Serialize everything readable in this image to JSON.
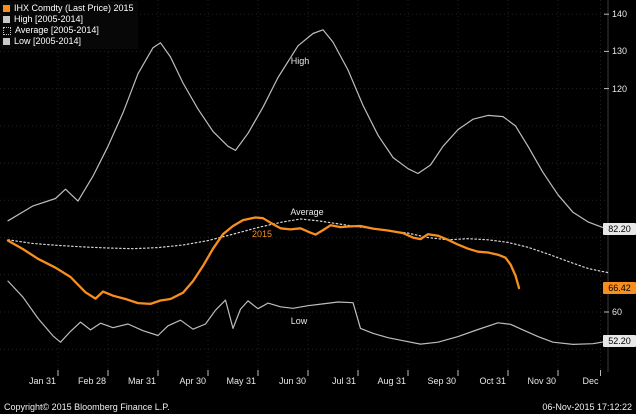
{
  "legend": {
    "items": [
      {
        "label": "IHX Comdty (Last Price) 2015",
        "marker": "solid",
        "color": "#f78e1e"
      },
      {
        "label": "High [2005-2014]",
        "marker": "solid",
        "color": "#c8c8c8"
      },
      {
        "label": "Average [2005-2014]",
        "marker": "dotted",
        "color": "#c8c8c8"
      },
      {
        "label": "Low [2005-2014]",
        "marker": "solid",
        "color": "#c8c8c8"
      }
    ]
  },
  "footer": {
    "copyright": "Copyright© 2015 Bloomberg Finance L.P.",
    "timestamp": "06-Nov-2015 17:12:22"
  },
  "colors": {
    "background": "#000000",
    "accent_orange": "#f78e1e",
    "line_gray": "#bdbdbd",
    "badge_white": "#e8e8e8"
  },
  "chart_data": {
    "type": "line",
    "title": "IHX Comdty (Last Price) 2015 vs High/Average/Low [2005-2014]",
    "xlim": [
      0,
      12
    ],
    "ylim": [
      43.9,
      143.8
    ],
    "grid": true,
    "legend_position": "top-left",
    "x_ticks": [
      {
        "label": "Jan 31",
        "m": 1
      },
      {
        "label": "Feb 28",
        "m": 2
      },
      {
        "label": "Mar 31",
        "m": 3
      },
      {
        "label": "Apr 30",
        "m": 4
      },
      {
        "label": "May 31",
        "m": 5
      },
      {
        "label": "Jun 30",
        "m": 6
      },
      {
        "label": "Jul 31",
        "m": 7
      },
      {
        "label": "Aug 31",
        "m": 8
      },
      {
        "label": "Sep 30",
        "m": 9
      },
      {
        "label": "Oct 31",
        "m": 10
      },
      {
        "label": "Nov 30",
        "m": 11
      },
      {
        "label": "Dec",
        "m": 11.85
      }
    ],
    "y_ticks_plain": [
      {
        "label": "140",
        "v": 140
      },
      {
        "label": "130",
        "v": 130
      },
      {
        "label": "120",
        "v": 120
      },
      {
        "label": "60",
        "v": 60
      }
    ],
    "y_grid_values": [
      50,
      60,
      70,
      80,
      90,
      100,
      110,
      120,
      130,
      140
    ],
    "y_badges": [
      {
        "label": "82.20",
        "v": 82.2,
        "bg": "#e8e8e8",
        "fg": "#000000"
      },
      {
        "label": "66.42",
        "v": 66.42,
        "bg": "#f78e1e",
        "fg": "#000000"
      },
      {
        "label": "52.20",
        "v": 52.2,
        "bg": "#e8e8e8",
        "fg": "#000000"
      }
    ],
    "annotations": [
      {
        "text": "High",
        "m": 5.84,
        "v": 127.3,
        "color": "#e8e8e8"
      },
      {
        "text": "Average",
        "m": 5.98,
        "v": 87.0,
        "color": "#e8e8e8"
      },
      {
        "text": "2015",
        "m": 5.08,
        "v": 81.0,
        "color": "#f78e1e"
      },
      {
        "text": "Low",
        "m": 5.82,
        "v": 57.6,
        "color": "#e8e8e8"
      }
    ],
    "series": [
      {
        "name": "High [2005-2014]",
        "color": "#bdbdbd",
        "width": 1.2,
        "dash": "",
        "points": [
          [
            0,
            84.5
          ],
          [
            0.5,
            88.5
          ],
          [
            0.95,
            90.5
          ],
          [
            1.15,
            93.0
          ],
          [
            1.4,
            89.8
          ],
          [
            1.7,
            96.5
          ],
          [
            2.0,
            104.5
          ],
          [
            2.3,
            113.5
          ],
          [
            2.6,
            124.0
          ],
          [
            2.9,
            131.0
          ],
          [
            3.05,
            132.3
          ],
          [
            3.25,
            128.5
          ],
          [
            3.5,
            121.5
          ],
          [
            3.8,
            114.5
          ],
          [
            4.1,
            108.5
          ],
          [
            4.4,
            104.5
          ],
          [
            4.55,
            103.4
          ],
          [
            4.8,
            108.0
          ],
          [
            5.1,
            115.0
          ],
          [
            5.4,
            123.0
          ],
          [
            5.8,
            131.5
          ],
          [
            6.1,
            134.8
          ],
          [
            6.3,
            135.8
          ],
          [
            6.5,
            132.5
          ],
          [
            6.8,
            125.0
          ],
          [
            7.1,
            115.5
          ],
          [
            7.4,
            107.5
          ],
          [
            7.7,
            101.5
          ],
          [
            8.0,
            98.5
          ],
          [
            8.2,
            97.2
          ],
          [
            8.45,
            99.5
          ],
          [
            8.7,
            104.5
          ],
          [
            9.0,
            109.0
          ],
          [
            9.3,
            111.8
          ],
          [
            9.6,
            112.8
          ],
          [
            9.9,
            112.5
          ],
          [
            10.15,
            110.0
          ],
          [
            10.4,
            104.5
          ],
          [
            10.7,
            97.5
          ],
          [
            11.0,
            91.5
          ],
          [
            11.3,
            86.8
          ],
          [
            11.6,
            84.2
          ],
          [
            11.8,
            83.2
          ],
          [
            12.0,
            82.2
          ]
        ]
      },
      {
        "name": "Average [2005-2014]",
        "color": "#d6d6d6",
        "width": 1.2,
        "dash": "1.5,2.5",
        "points": [
          [
            0,
            79.4
          ],
          [
            0.5,
            78.4
          ],
          [
            1.0,
            77.9
          ],
          [
            1.5,
            77.5
          ],
          [
            2.0,
            77.2
          ],
          [
            2.5,
            77.0
          ],
          [
            3.0,
            77.3
          ],
          [
            3.5,
            78.0
          ],
          [
            4.0,
            79.2
          ],
          [
            4.5,
            80.9
          ],
          [
            5.0,
            82.7
          ],
          [
            5.5,
            84.2
          ],
          [
            5.85,
            85.0
          ],
          [
            6.2,
            84.5
          ],
          [
            6.6,
            83.7
          ],
          [
            7.0,
            82.9
          ],
          [
            7.5,
            82.1
          ],
          [
            8.0,
            81.2
          ],
          [
            8.4,
            80.0
          ],
          [
            8.8,
            79.4
          ],
          [
            9.2,
            79.7
          ],
          [
            9.6,
            79.4
          ],
          [
            10.0,
            78.7
          ],
          [
            10.4,
            77.4
          ],
          [
            10.8,
            75.6
          ],
          [
            11.2,
            73.6
          ],
          [
            11.6,
            71.7
          ],
          [
            12.0,
            70.6
          ]
        ]
      },
      {
        "name": "Low [2005-2014]",
        "color": "#bdbdbd",
        "width": 1.2,
        "dash": "",
        "points": [
          [
            0,
            68.3
          ],
          [
            0.3,
            64.0
          ],
          [
            0.6,
            58.3
          ],
          [
            0.9,
            53.6
          ],
          [
            1.05,
            51.9
          ],
          [
            1.25,
            54.8
          ],
          [
            1.45,
            57.3
          ],
          [
            1.65,
            55.2
          ],
          [
            1.85,
            57.0
          ],
          [
            2.1,
            55.8
          ],
          [
            2.4,
            56.8
          ],
          [
            2.7,
            55.0
          ],
          [
            3.0,
            53.7
          ],
          [
            3.2,
            56.3
          ],
          [
            3.45,
            57.8
          ],
          [
            3.7,
            55.4
          ],
          [
            3.95,
            56.8
          ],
          [
            4.15,
            60.5
          ],
          [
            4.35,
            63.2
          ],
          [
            4.5,
            55.6
          ],
          [
            4.65,
            60.8
          ],
          [
            4.8,
            63.0
          ],
          [
            5.0,
            60.9
          ],
          [
            5.2,
            62.4
          ],
          [
            5.45,
            61.4
          ],
          [
            5.7,
            61.0
          ],
          [
            6.0,
            61.7
          ],
          [
            6.3,
            62.2
          ],
          [
            6.6,
            62.7
          ],
          [
            6.9,
            62.5
          ],
          [
            7.05,
            55.6
          ],
          [
            7.3,
            54.3
          ],
          [
            7.6,
            53.1
          ],
          [
            7.9,
            52.3
          ],
          [
            8.25,
            51.4
          ],
          [
            8.6,
            51.9
          ],
          [
            9.0,
            53.4
          ],
          [
            9.4,
            55.3
          ],
          [
            9.8,
            57.1
          ],
          [
            10.05,
            56.7
          ],
          [
            10.3,
            55.2
          ],
          [
            10.6,
            53.4
          ],
          [
            10.9,
            51.9
          ],
          [
            11.3,
            51.3
          ],
          [
            11.7,
            51.5
          ],
          [
            12.0,
            52.2
          ]
        ]
      },
      {
        "name": "IHX Comdty (Last Price) 2015",
        "color": "#f78e1e",
        "width": 2.3,
        "dash": "",
        "points": [
          [
            0,
            79.2
          ],
          [
            0.3,
            76.9
          ],
          [
            0.6,
            74.3
          ],
          [
            0.95,
            71.9
          ],
          [
            1.25,
            69.4
          ],
          [
            1.55,
            65.3
          ],
          [
            1.75,
            63.6
          ],
          [
            1.9,
            65.5
          ],
          [
            2.1,
            64.4
          ],
          [
            2.35,
            63.5
          ],
          [
            2.6,
            62.4
          ],
          [
            2.85,
            62.2
          ],
          [
            3.05,
            63.1
          ],
          [
            3.25,
            63.5
          ],
          [
            3.5,
            65.2
          ],
          [
            3.7,
            68.3
          ],
          [
            3.9,
            72.4
          ],
          [
            4.1,
            77.0
          ],
          [
            4.3,
            80.9
          ],
          [
            4.5,
            83.1
          ],
          [
            4.7,
            84.7
          ],
          [
            4.95,
            85.4
          ],
          [
            5.1,
            85.2
          ],
          [
            5.25,
            84.0
          ],
          [
            5.45,
            82.5
          ],
          [
            5.65,
            82.2
          ],
          [
            5.85,
            82.5
          ],
          [
            6.05,
            81.3
          ],
          [
            6.15,
            80.8
          ],
          [
            6.3,
            82.0
          ],
          [
            6.45,
            83.3
          ],
          [
            6.65,
            82.8
          ],
          [
            6.85,
            83.0
          ],
          [
            7.05,
            83.1
          ],
          [
            7.3,
            82.4
          ],
          [
            7.6,
            81.9
          ],
          [
            7.9,
            81.2
          ],
          [
            8.1,
            80.0
          ],
          [
            8.25,
            79.6
          ],
          [
            8.4,
            80.9
          ],
          [
            8.6,
            80.5
          ],
          [
            8.8,
            79.4
          ],
          [
            9.0,
            78.1
          ],
          [
            9.2,
            77.0
          ],
          [
            9.4,
            76.2
          ],
          [
            9.6,
            76.0
          ],
          [
            9.8,
            75.4
          ],
          [
            9.95,
            74.6
          ],
          [
            10.05,
            72.8
          ],
          [
            10.15,
            69.8
          ],
          [
            10.22,
            66.42
          ]
        ]
      }
    ]
  }
}
